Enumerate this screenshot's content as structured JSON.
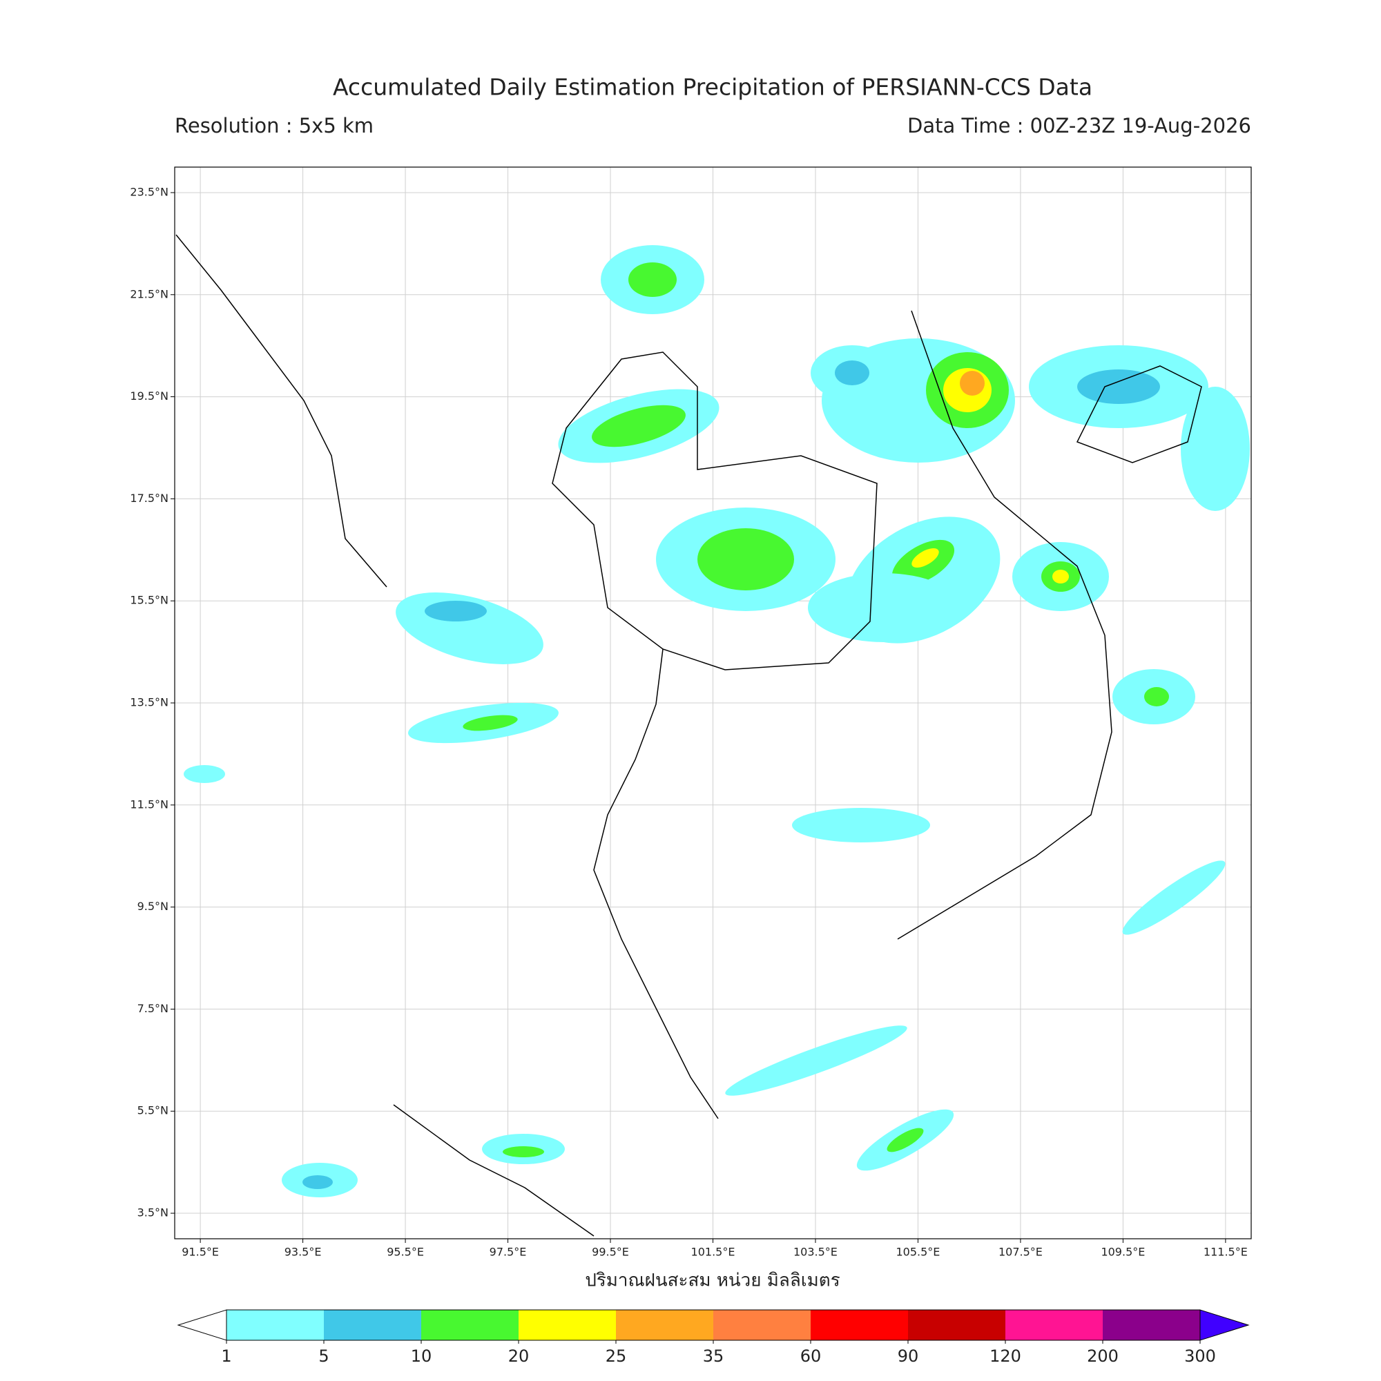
{
  "chart_data": {
    "type": "map",
    "title": "Accumulated Daily Estimation Precipitation of PERSIANN-CCS Data",
    "subtitle_left": "Resolution : 5x5 km",
    "subtitle_right": "Data Time : 00Z-23Z 19-Aug-2026",
    "colorbar_label": "ปริมาณฝนสะสม หน่วย มิลลิเมตร",
    "xlim": [
      91,
      112
    ],
    "ylim": [
      3,
      24
    ],
    "xticks": [
      {
        "value": 91.5,
        "label": "91.5°E"
      },
      {
        "value": 93.5,
        "label": "93.5°E"
      },
      {
        "value": 95.5,
        "label": "95.5°E"
      },
      {
        "value": 97.5,
        "label": "97.5°E"
      },
      {
        "value": 99.5,
        "label": "99.5°E"
      },
      {
        "value": 101.5,
        "label": "101.5°E"
      },
      {
        "value": 103.5,
        "label": "103.5°E"
      },
      {
        "value": 105.5,
        "label": "105.5°E"
      },
      {
        "value": 107.5,
        "label": "107.5°E"
      },
      {
        "value": 109.5,
        "label": "109.5°E"
      },
      {
        "value": 111.5,
        "label": "111.5°E"
      }
    ],
    "yticks": [
      {
        "value": 23.5,
        "label": "23.5°N"
      },
      {
        "value": 21.5,
        "label": "21.5°N"
      },
      {
        "value": 19.5,
        "label": "19.5°N"
      },
      {
        "value": 17.5,
        "label": "17.5°N"
      },
      {
        "value": 15.5,
        "label": "15.5°N"
      },
      {
        "value": 13.5,
        "label": "13.5°N"
      },
      {
        "value": 11.5,
        "label": "11.5°N"
      },
      {
        "value": 9.5,
        "label": "9.5°N"
      },
      {
        "value": 7.5,
        "label": "7.5°N"
      },
      {
        "value": 5.5,
        "label": "5.5°N"
      },
      {
        "value": 3.5,
        "label": "3.5°N"
      }
    ],
    "grid": true,
    "levels": [
      1,
      5,
      10,
      20,
      25,
      35,
      60,
      90,
      120,
      200,
      300
    ],
    "colors": [
      "#80ffff",
      "#40c8e8",
      "#48f830",
      "#ffff00",
      "#ffa820",
      "#ff8040",
      "#ff0000",
      "#c80000",
      "#ff1493",
      "#8b008b"
    ],
    "extend_min_color": "#ffffff",
    "extend_max_color": "#4000ff"
  }
}
